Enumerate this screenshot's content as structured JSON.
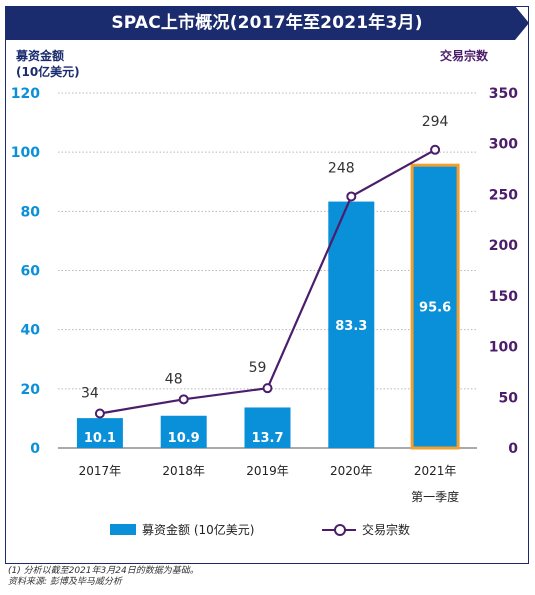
{
  "title": "SPAC上市概况(2017年至2021年3月)",
  "left_axis_title_line1": "募资金额",
  "left_axis_title_line2": "(10亿美元)",
  "right_axis_title": "交易宗数",
  "colors": {
    "banner": "#1a2b6e",
    "bar": "#0a8fd9",
    "highlight_border": "#f0a030",
    "line": "#4b1d6b",
    "left_axis_text": "#0a8fd9",
    "right_axis_text": "#4b1d6b"
  },
  "legend": {
    "bar_label": "募资金额 (10亿美元)",
    "line_label": "交易宗数"
  },
  "footnote": {
    "line1": "(1) 分析以截至2021年3月24日的数据为基础。",
    "line2": "资料来源: 彭博及毕马威分析"
  },
  "chart_data": {
    "type": "bar",
    "categories": [
      "2017年",
      "2018年",
      "2019年",
      "2020年",
      "2021年"
    ],
    "category_sublabels": [
      "",
      "",
      "",
      "",
      "第一季度"
    ],
    "series": [
      {
        "name": "募资金额 (10亿美元)",
        "type": "bar",
        "axis": "left",
        "values": [
          10.1,
          10.9,
          13.7,
          83.3,
          95.6
        ],
        "value_labels": [
          "10.1",
          "10.9",
          "13.7",
          "83.3",
          "95.6"
        ],
        "highlight_index": 4
      },
      {
        "name": "交易宗数",
        "type": "line",
        "axis": "right",
        "values": [
          34,
          48,
          59,
          248,
          294
        ],
        "value_labels": [
          "34",
          "48",
          "59",
          "248",
          "294"
        ]
      }
    ],
    "left_axis": {
      "min": 0,
      "max": 120,
      "ticks": [
        "0",
        "20",
        "40",
        "60",
        "80",
        "100",
        "120"
      ]
    },
    "right_axis": {
      "min": 0,
      "max": 350,
      "ticks": [
        "0",
        "50",
        "100",
        "150",
        "200",
        "250",
        "300",
        "350"
      ]
    },
    "grid": "horizontal dotted",
    "legend_position": "bottom-center"
  }
}
